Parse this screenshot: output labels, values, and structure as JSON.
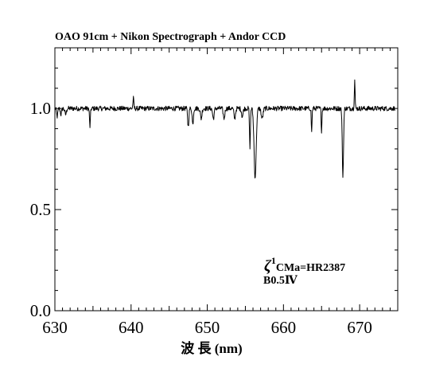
{
  "chart_data": {
    "type": "line",
    "title": "OAO 91cm + Nikon Spectrograph + Andor CCD",
    "xlabel": "波 長 (nm)",
    "ylabel": "",
    "xlim": [
      630,
      675
    ],
    "ylim": [
      0.0,
      1.3
    ],
    "xticks": [
      630,
      640,
      650,
      660,
      670
    ],
    "xtick_labels": [
      "630",
      "640",
      "650",
      "660",
      "670"
    ],
    "yticks": [
      0.0,
      0.5,
      1.0
    ],
    "ytick_labels": [
      "0.0",
      "0.5",
      "1.0"
    ],
    "grid": false,
    "legend": "none",
    "annotations": [
      {
        "symbol": "ζ",
        "superscript": "1",
        "text": "CMa=HR2387"
      },
      {
        "text": "B0.5Ⅳ"
      }
    ],
    "series": [
      {
        "continuum": 1.0,
        "noise_amplitude": 0.012,
        "x_range": [
          630.0,
          674.6
        ],
        "lines": [
          {
            "x": 630.3,
            "depth": 0.04,
            "width": 0.08
          },
          {
            "x": 630.8,
            "depth": 0.03,
            "width": 0.08
          },
          {
            "x": 631.4,
            "depth": 0.03,
            "width": 0.1
          },
          {
            "x": 634.6,
            "depth": 0.09,
            "width": 0.06
          },
          {
            "x": 640.3,
            "depth": -0.05,
            "width": 0.06
          },
          {
            "x": 647.5,
            "depth": 0.09,
            "width": 0.08
          },
          {
            "x": 648.1,
            "depth": 0.08,
            "width": 0.08
          },
          {
            "x": 649.2,
            "depth": 0.05,
            "width": 0.1
          },
          {
            "x": 650.8,
            "depth": 0.05,
            "width": 0.1
          },
          {
            "x": 652.2,
            "depth": 0.05,
            "width": 0.1
          },
          {
            "x": 653.6,
            "depth": 0.05,
            "width": 0.1
          },
          {
            "x": 654.6,
            "depth": 0.04,
            "width": 0.1
          },
          {
            "x": 655.6,
            "depth": 0.19,
            "width": 0.06
          },
          {
            "x": 656.28,
            "depth": 0.34,
            "width": 0.14
          },
          {
            "x": 657.2,
            "depth": 0.05,
            "width": 0.12
          },
          {
            "x": 663.7,
            "depth": 0.12,
            "width": 0.05
          },
          {
            "x": 665.0,
            "depth": 0.11,
            "width": 0.05
          },
          {
            "x": 667.8,
            "depth": 0.34,
            "width": 0.08
          },
          {
            "x": 669.35,
            "depth": -0.14,
            "width": 0.05
          }
        ]
      }
    ]
  }
}
